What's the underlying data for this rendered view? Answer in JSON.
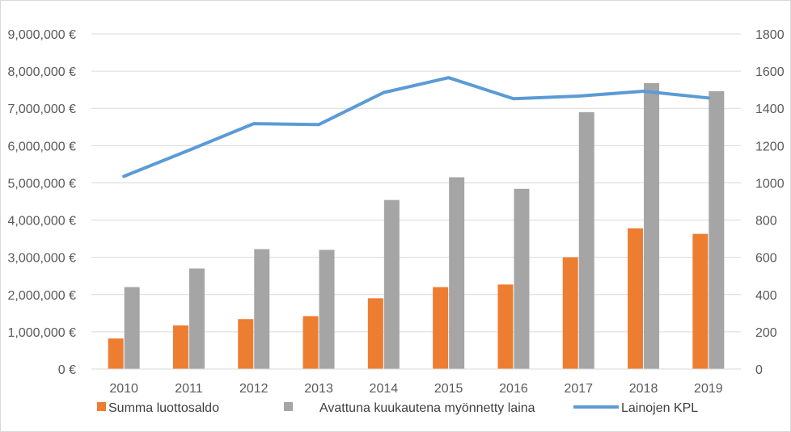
{
  "chart_data": {
    "type": "bar",
    "title": "",
    "xlabel": "",
    "ylabel": "",
    "categories": [
      "2010",
      "2011",
      "2012",
      "2013",
      "2014",
      "2015",
      "2016",
      "2017",
      "2018",
      "2019"
    ],
    "ylim": [
      0,
      9000000
    ],
    "y2lim": [
      0,
      1800
    ],
    "y_ticks": [
      "0 €",
      "1,000,000 €",
      "2,000,000 €",
      "3,000,000 €",
      "4,000,000 €",
      "5,000,000 €",
      "6,000,000 €",
      "7,000,000 €",
      "8,000,000 €",
      "9,000,000 €"
    ],
    "y2_ticks": [
      "0",
      "200",
      "400",
      "600",
      "800",
      "1000",
      "1200",
      "1400",
      "1600",
      "1800"
    ],
    "grid": true,
    "legend_position": "bottom",
    "series": [
      {
        "name": "Summa luottosaldo",
        "type": "bar",
        "axis": "left",
        "color": "#ED7D31",
        "values": [
          820000,
          1170000,
          1340000,
          1420000,
          1900000,
          2200000,
          2270000,
          3000000,
          3780000,
          3630000
        ]
      },
      {
        "name": "Avattuna kuukautena myönnetty laina",
        "type": "bar",
        "axis": "left",
        "color": "#A5A5A5",
        "values": [
          2200000,
          2700000,
          3220000,
          3200000,
          4540000,
          5150000,
          4840000,
          6900000,
          7680000,
          7460000
        ]
      },
      {
        "name": "Lainojen KPL",
        "type": "line",
        "axis": "right",
        "color": "#5B9BD5",
        "values": [
          1035,
          1175,
          1318,
          1313,
          1485,
          1565,
          1452,
          1466,
          1492,
          1456
        ]
      }
    ]
  }
}
